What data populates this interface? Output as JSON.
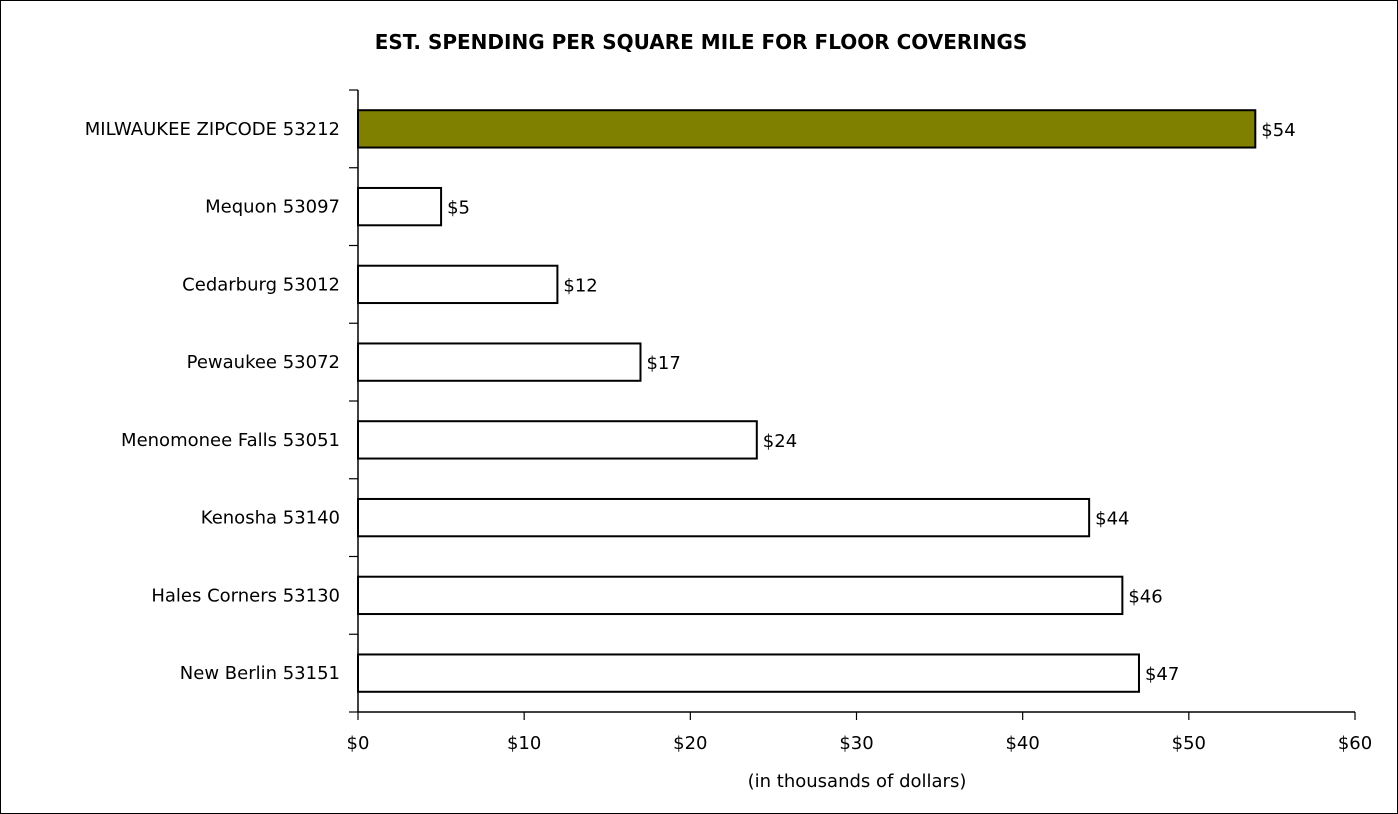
{
  "chart_data": {
    "type": "bar",
    "orientation": "horizontal",
    "title": "EST. SPENDING PER SQUARE MILE FOR FLOOR COVERINGS",
    "xlabel": "(in thousands of dollars)",
    "ylabel": "",
    "categories": [
      "MILWAUKEE ZIPCODE 53212",
      "Mequon 53097",
      "Cedarburg 53012",
      "Pewaukee 53072",
      "Menomonee Falls 53051",
      "Kenosha 53140",
      "Hales Corners 53130",
      "New Berlin 53151"
    ],
    "values": [
      54,
      5,
      12,
      17,
      24,
      44,
      46,
      47
    ],
    "data_labels": [
      "$54",
      "$5",
      "$12",
      "$17",
      "$24",
      "$44",
      "$46",
      "$47"
    ],
    "xlim": [
      0,
      60
    ],
    "x_ticks": [
      0,
      10,
      20,
      30,
      40,
      50,
      60
    ],
    "x_tick_labels": [
      "$0",
      "$10",
      "$20",
      "$30",
      "$40",
      "$50",
      "$60"
    ],
    "grid": false,
    "legend": "none",
    "colors": {
      "highlight": "#808000",
      "default": "#ffffff",
      "outline": "#000000"
    },
    "highlight_index": 0
  }
}
